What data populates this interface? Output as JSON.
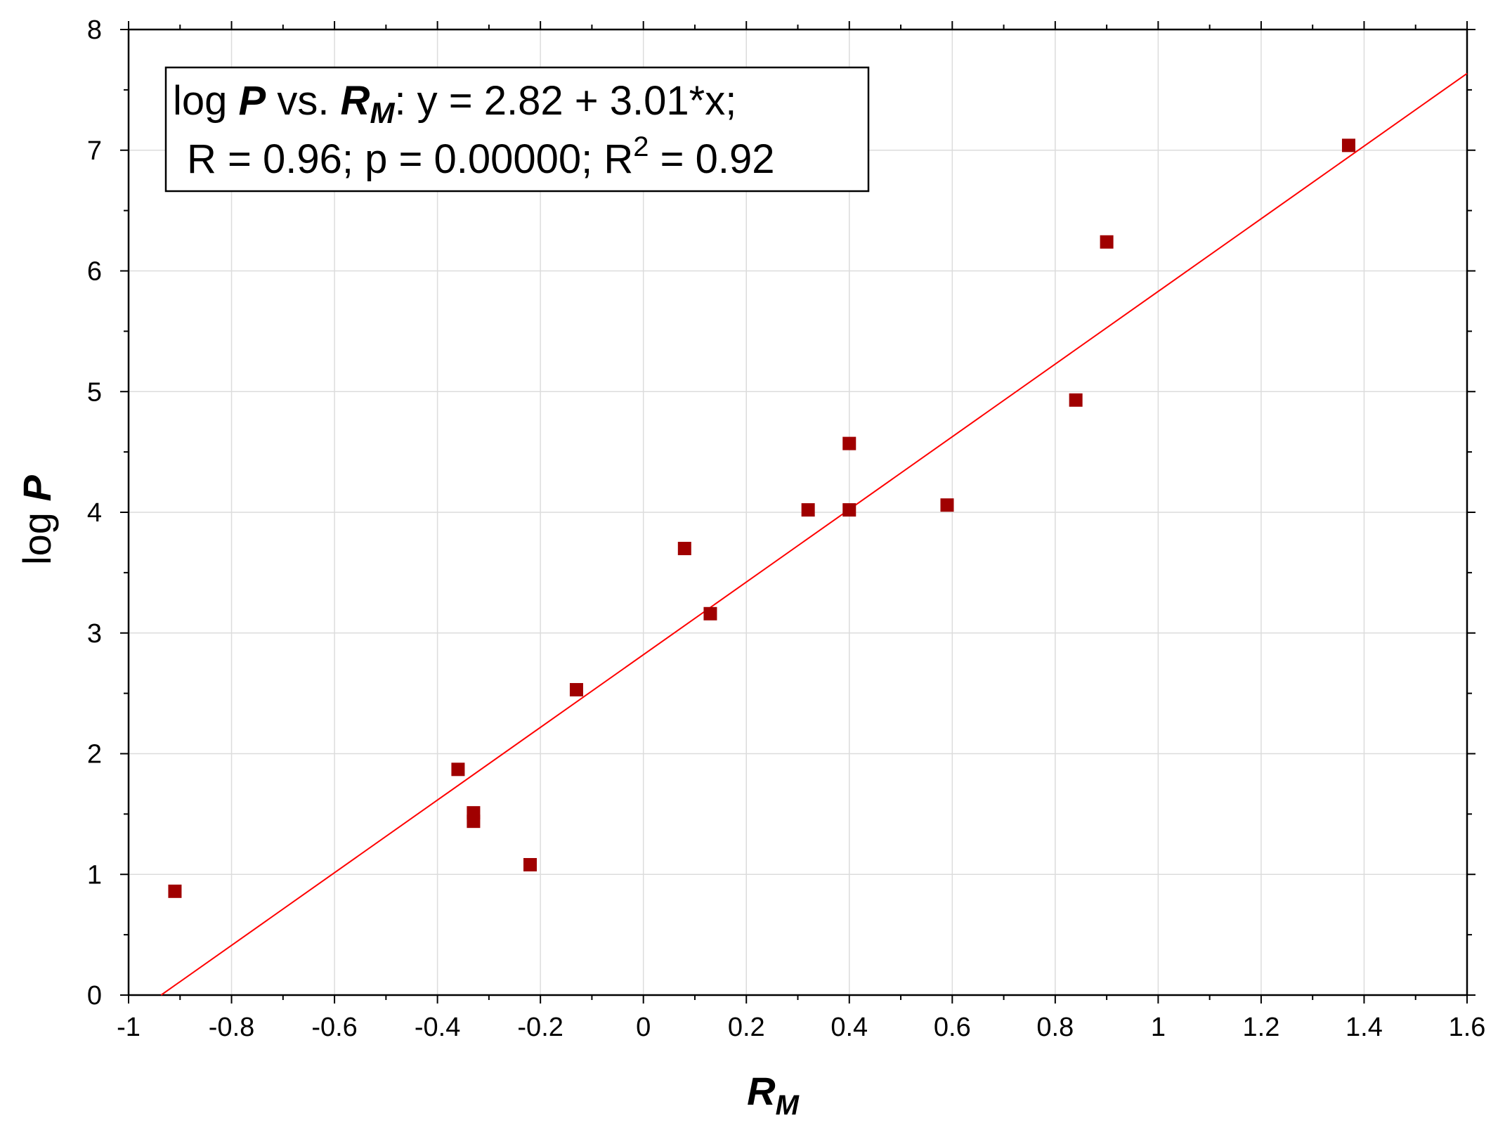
{
  "chart_data": {
    "type": "scatter",
    "xlabel": {
      "main": "R",
      "sub": "M"
    },
    "ylabel": {
      "main": "log ",
      "bold": "P"
    },
    "xlim": [
      -1,
      1.6
    ],
    "ylim": [
      0,
      8
    ],
    "x_ticks": [
      {
        "value": -1,
        "label": "-1"
      },
      {
        "value": -0.8,
        "label": "-0.8"
      },
      {
        "value": -0.6,
        "label": "-0.6"
      },
      {
        "value": -0.4,
        "label": "-0.4"
      },
      {
        "value": -0.2,
        "label": "-0.2"
      },
      {
        "value": 0,
        "label": "0"
      },
      {
        "value": 0.2,
        "label": "0.2"
      },
      {
        "value": 0.4,
        "label": "0.4"
      },
      {
        "value": 0.6,
        "label": "0.6"
      },
      {
        "value": 0.8,
        "label": "0.8"
      },
      {
        "value": 1,
        "label": "1"
      },
      {
        "value": 1.2,
        "label": "1.2"
      },
      {
        "value": 1.4,
        "label": "1.4"
      },
      {
        "value": 1.6,
        "label": "1.6"
      }
    ],
    "y_ticks": [
      {
        "value": 0,
        "label": "0"
      },
      {
        "value": 1,
        "label": "1"
      },
      {
        "value": 2,
        "label": "2"
      },
      {
        "value": 3,
        "label": "3"
      },
      {
        "value": 4,
        "label": "4"
      },
      {
        "value": 5,
        "label": "5"
      },
      {
        "value": 6,
        "label": "6"
      },
      {
        "value": 7,
        "label": "7"
      },
      {
        "value": 8,
        "label": "8"
      }
    ],
    "grid": true,
    "points": [
      {
        "x": -0.91,
        "y": 0.86
      },
      {
        "x": -0.36,
        "y": 1.87
      },
      {
        "x": -0.33,
        "y": 1.51
      },
      {
        "x": -0.33,
        "y": 1.44
      },
      {
        "x": -0.22,
        "y": 1.08
      },
      {
        "x": -0.13,
        "y": 2.53
      },
      {
        "x": 0.08,
        "y": 3.7
      },
      {
        "x": 0.13,
        "y": 3.16
      },
      {
        "x": 0.32,
        "y": 4.02
      },
      {
        "x": 0.4,
        "y": 4.57
      },
      {
        "x": 0.4,
        "y": 4.02
      },
      {
        "x": 0.59,
        "y": 4.06
      },
      {
        "x": 0.84,
        "y": 4.93
      },
      {
        "x": 0.9,
        "y": 6.24
      },
      {
        "x": 1.37,
        "y": 7.04
      }
    ],
    "fit_line": {
      "intercept": 2.82,
      "slope": 3.01
    },
    "point_color": "#a00000",
    "line_color": "#ff0000",
    "legend": {
      "placement": "top-left",
      "line1": {
        "a": "log ",
        "b": "P",
        "c": " vs. ",
        "d": "R",
        "d_sub": "M",
        "e": ": y = 2.82 + 3.01*x;"
      },
      "line2": {
        "a": "R = 0.96; p = 0.00000; R",
        "sup": "2",
        "b": " = 0.92"
      }
    }
  }
}
